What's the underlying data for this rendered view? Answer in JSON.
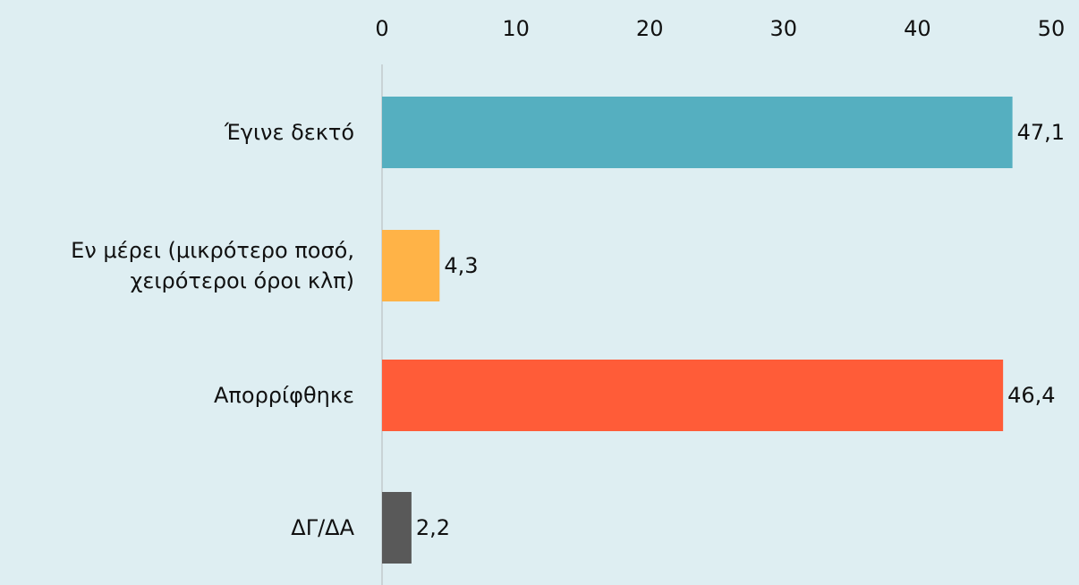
{
  "chart_data": {
    "type": "bar",
    "orientation": "horizontal",
    "axis_position": "top",
    "categories": [
      [
        "Έγινε δεκτό"
      ],
      [
        "Εν μέρει (μικρότερο ποσό,",
        "χειρότεροι όροι κλπ)"
      ],
      [
        "Απορρίφθηκε"
      ],
      [
        "ΔΓ/ΔΑ"
      ]
    ],
    "values": [
      47.1,
      4.3,
      46.4,
      2.2
    ],
    "value_labels": [
      "47,1",
      "4,3",
      "46,4",
      "2,2"
    ],
    "colors": [
      "#55afc0",
      "#ffb347",
      "#ff5c38",
      "#595959"
    ],
    "xlim": [
      0,
      50
    ],
    "ticks": [
      0,
      10,
      20,
      30,
      40,
      50
    ],
    "grid": false,
    "legend": "none"
  }
}
